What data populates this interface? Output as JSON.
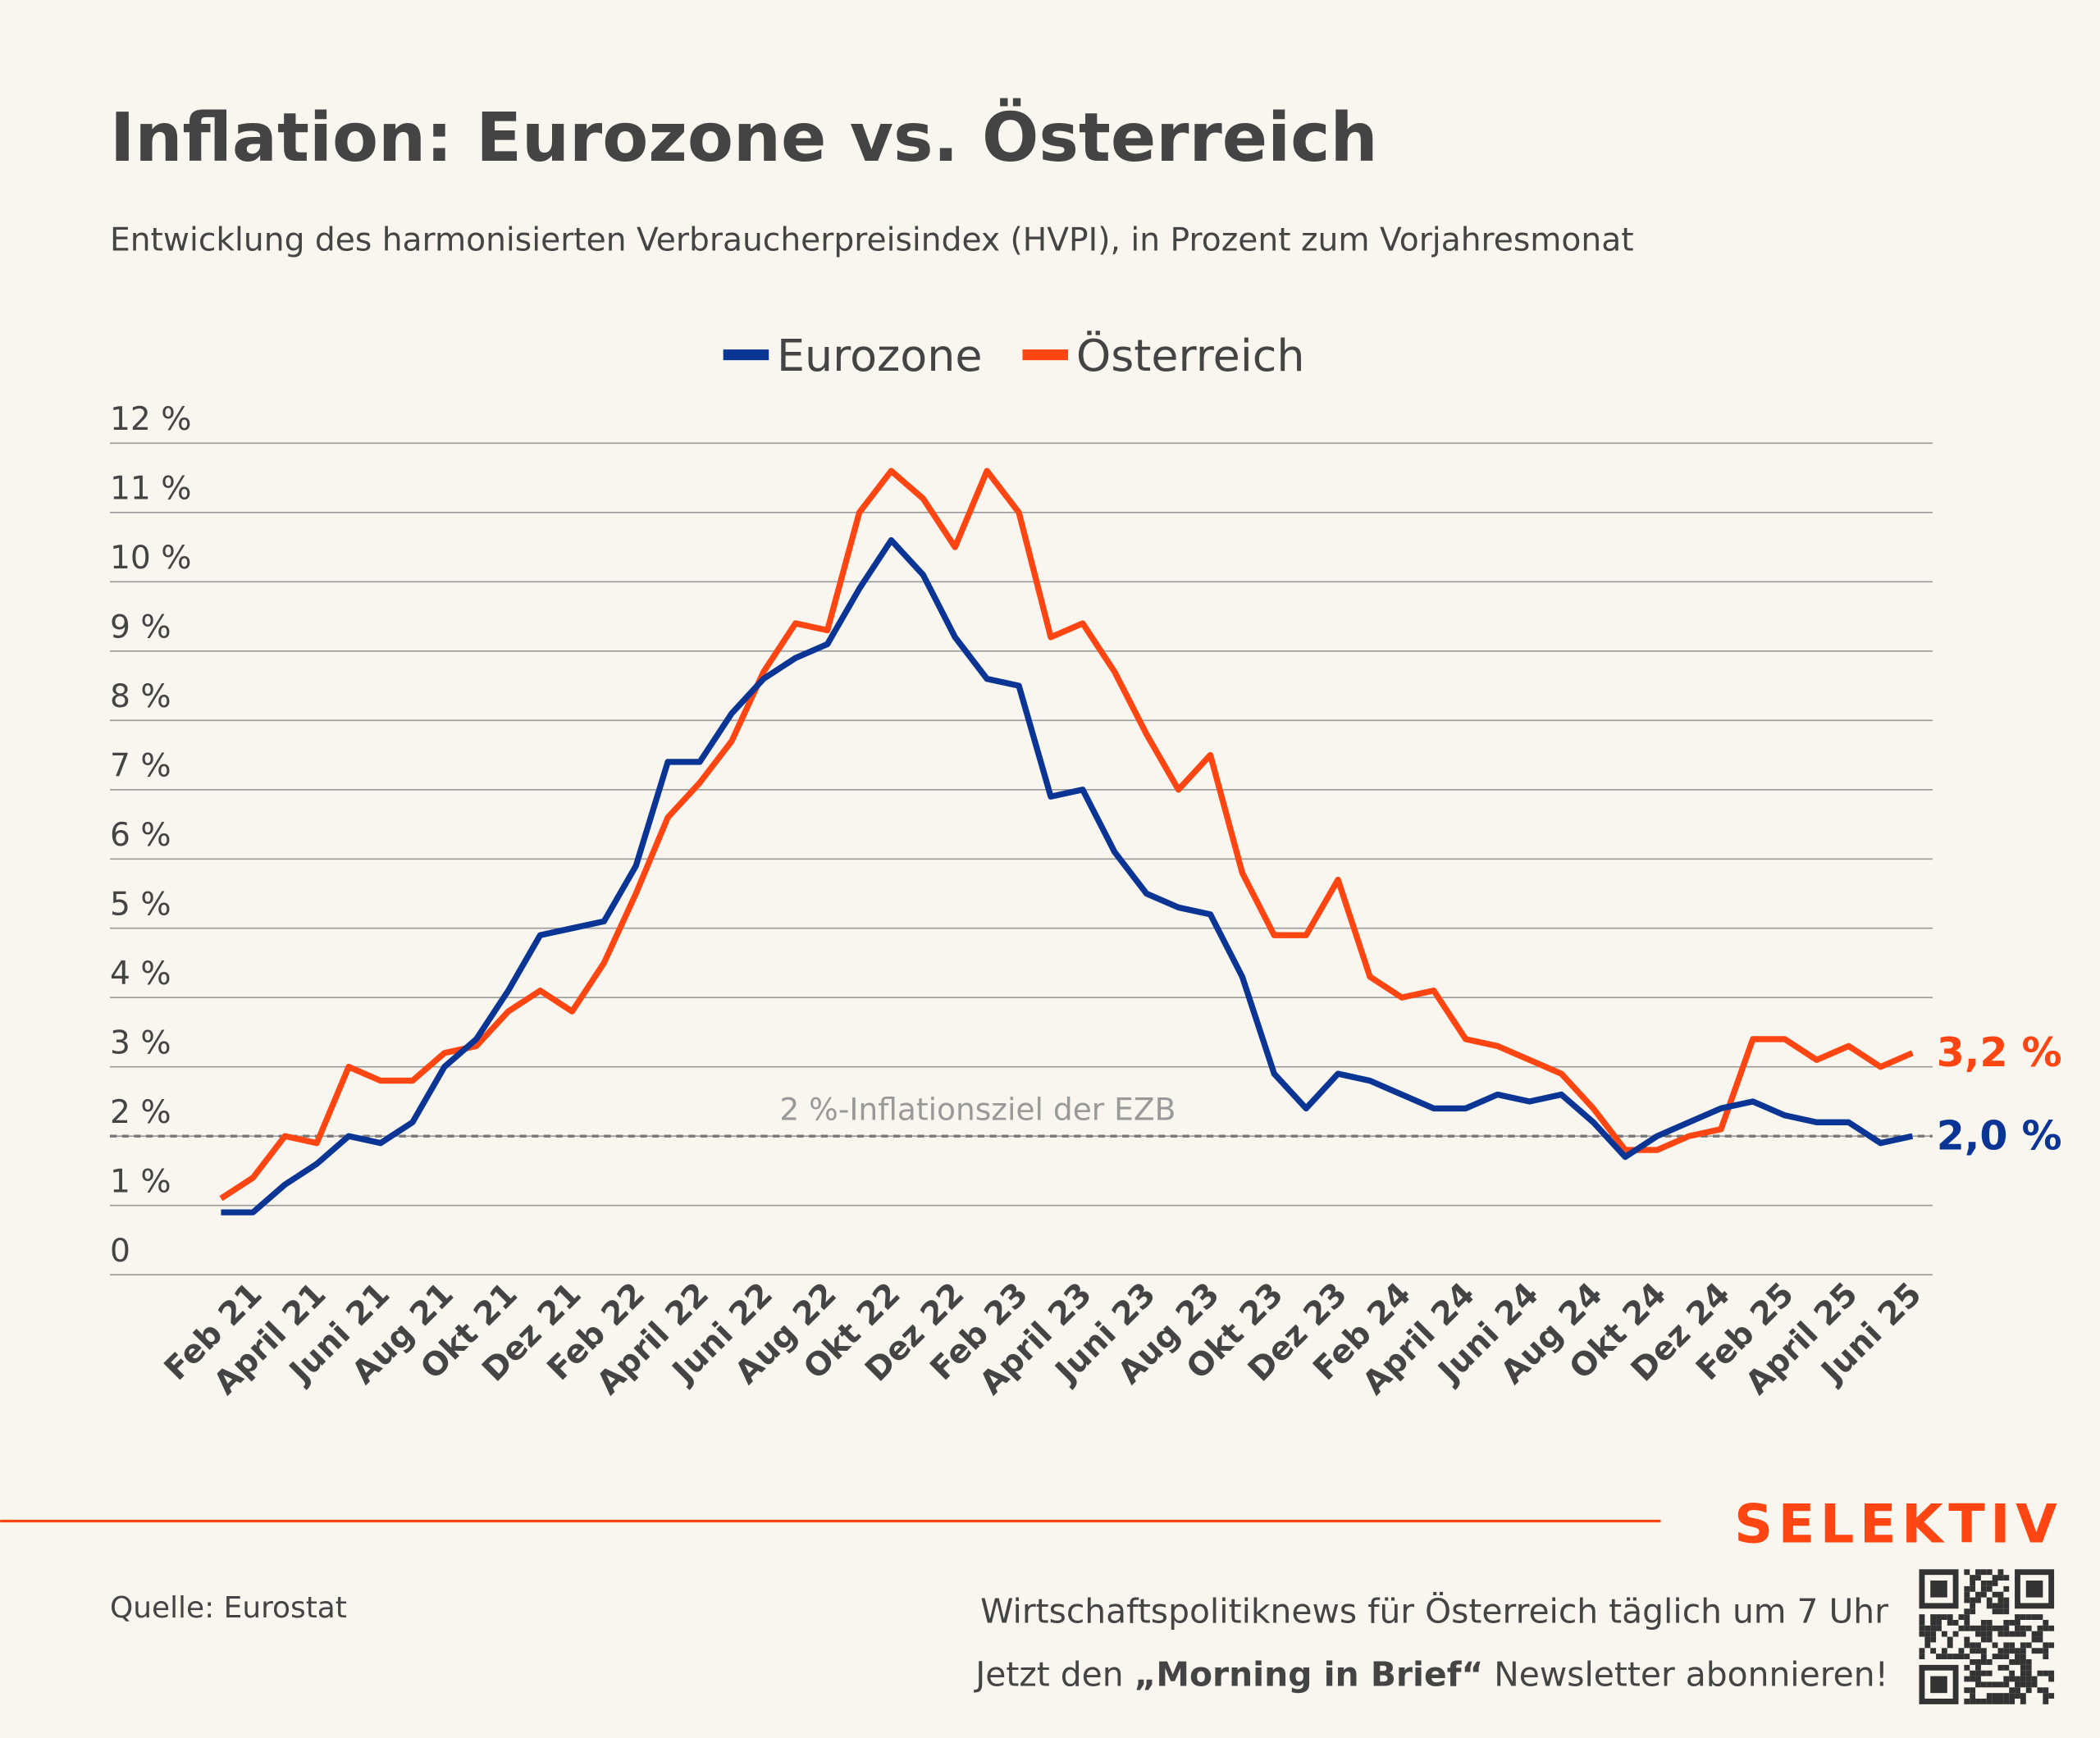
{
  "chart_data": {
    "type": "line",
    "title": "Inflation: Eurozone vs. Österreich",
    "subtitle": "Entwicklung des harmonisierten Verbraucherpreisindex (HVPI), in Prozent zum Vorjahresmonat",
    "categories": [
      null,
      "Feb 21",
      null,
      "April 21",
      null,
      "Juni 21",
      null,
      "Aug 21",
      null,
      "Okt 21",
      null,
      "Dez 21",
      null,
      "Feb 22",
      null,
      "April 22",
      null,
      "Juni 22",
      null,
      "Aug 22",
      null,
      "Okt 22",
      null,
      "Dez 22",
      null,
      "Feb 23",
      null,
      "April 23",
      null,
      "Juni 23",
      null,
      "Aug 23",
      null,
      "Okt 23",
      null,
      "Dez 23",
      null,
      "Feb 24",
      null,
      "April 24",
      null,
      "Juni 24",
      null,
      "Aug 24",
      null,
      "Okt 24",
      null,
      "Dez 24",
      null,
      "Feb 25",
      null,
      "April 25",
      null,
      "Juni 25"
    ],
    "series": [
      {
        "name": "Eurozone",
        "color": "#0b3595",
        "values": [
          0.9,
          0.9,
          1.3,
          1.6,
          2.0,
          1.9,
          2.2,
          3.0,
          3.4,
          4.1,
          4.9,
          5.0,
          5.1,
          5.9,
          7.4,
          7.4,
          8.1,
          8.6,
          8.9,
          9.1,
          9.9,
          10.6,
          10.1,
          9.2,
          8.6,
          8.5,
          6.9,
          7.0,
          6.1,
          5.5,
          5.3,
          5.2,
          4.3,
          2.9,
          2.4,
          2.9,
          2.8,
          2.6,
          2.4,
          2.4,
          2.6,
          2.5,
          2.6,
          2.2,
          1.7,
          2.0,
          2.2,
          2.4,
          2.5,
          2.3,
          2.2,
          2.2,
          1.9,
          2.0
        ],
        "value_labels": [
          null,
          null,
          null,
          null,
          null,
          null,
          null,
          null,
          null,
          null,
          null,
          null,
          null,
          null,
          null,
          null,
          null,
          null,
          null,
          null,
          null,
          null,
          null,
          null,
          null,
          null,
          null,
          null,
          null,
          null,
          null,
          null,
          null,
          null,
          null,
          null,
          null,
          null,
          null,
          null,
          null,
          null,
          null,
          null,
          null,
          null,
          null,
          null,
          null,
          null,
          null,
          null,
          null,
          "2,0 %"
        ]
      },
      {
        "name": "Österreich",
        "color": "#ff4512",
        "values": [
          1.1,
          1.4,
          2.0,
          1.9,
          3.0,
          2.8,
          2.8,
          3.2,
          3.3,
          3.8,
          4.1,
          3.8,
          4.5,
          5.5,
          6.6,
          7.1,
          7.7,
          8.7,
          9.4,
          9.3,
          11.0,
          11.6,
          11.2,
          10.5,
          11.6,
          11.0,
          9.2,
          9.4,
          8.7,
          7.8,
          7.0,
          7.5,
          5.8,
          4.9,
          4.9,
          5.7,
          4.3,
          4.0,
          4.1,
          3.4,
          3.3,
          3.1,
          2.9,
          2.4,
          1.8,
          1.8,
          2.0,
          2.1,
          3.4,
          3.4,
          3.1,
          3.3,
          3.0,
          3.2
        ],
        "value_labels": [
          null,
          null,
          null,
          null,
          null,
          null,
          null,
          null,
          null,
          null,
          null,
          null,
          null,
          null,
          null,
          null,
          null,
          null,
          null,
          null,
          null,
          null,
          null,
          null,
          null,
          null,
          null,
          null,
          null,
          null,
          null,
          null,
          null,
          null,
          null,
          null,
          null,
          null,
          null,
          null,
          null,
          null,
          null,
          null,
          null,
          null,
          null,
          null,
          null,
          null,
          null,
          null,
          null,
          "3,2 %"
        ]
      }
    ],
    "ylim": [
      0,
      12
    ],
    "yticks": [
      0,
      {
        "value": 1,
        "label": "1 %"
      },
      {
        "value": 2,
        "label": "2 %"
      },
      {
        "value": 3,
        "label": "3 %"
      },
      {
        "value": 4,
        "label": "4 %"
      },
      {
        "value": 5,
        "label": "5 %"
      },
      {
        "value": 6,
        "label": "6 %"
      },
      {
        "value": 7,
        "label": "7 %"
      },
      {
        "value": 8,
        "label": "8 %"
      },
      {
        "value": 9,
        "label": "9 %"
      },
      {
        "value": 10,
        "label": "10 %"
      },
      {
        "value": 11,
        "label": "11 %"
      },
      {
        "value": 12,
        "label": "12 %"
      }
    ],
    "grid": true,
    "legend": "top",
    "reference_line": {
      "value": 2,
      "label": "2 %-Inflationsziel der EZB"
    }
  },
  "footer": {
    "source": "Quelle: Eurostat",
    "brand": "SELEKTIV",
    "line1": "Wirtschaftspolitiknews für Österreich täglich um 7 Uhr",
    "line2": [
      "Jetzt den ",
      "„Morning in Brief“",
      " Newsletter abonnieren!"
    ]
  }
}
